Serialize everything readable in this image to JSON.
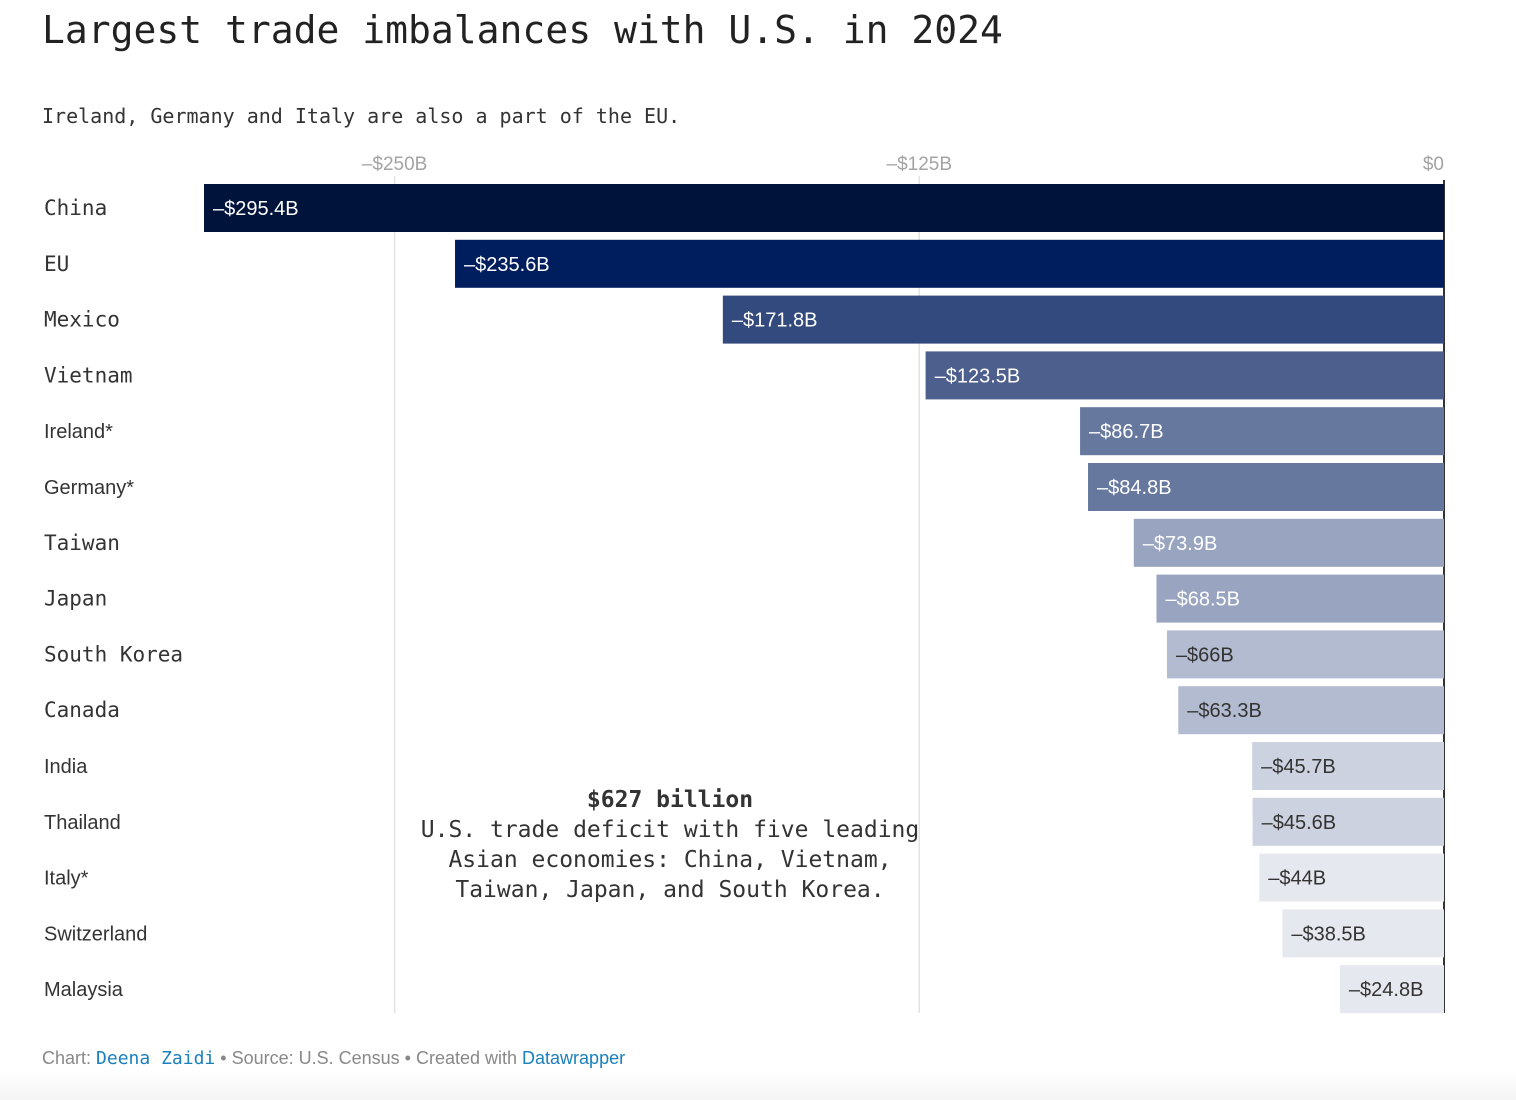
{
  "title": "Largest trade imbalances with U.S. in 2024",
  "subtitle": "Ireland, Germany and Italy are also a part of the EU.",
  "chart_data": {
    "type": "bar",
    "orientation": "horizontal",
    "categories": [
      "China",
      "EU",
      "Mexico",
      "Vietnam",
      "Ireland*",
      "Germany*",
      "Taiwan",
      "Japan",
      "South Korea",
      "Canada",
      "India",
      "Thailand",
      "Italy*",
      "Switzerland",
      "Malaysia"
    ],
    "values": [
      -295.4,
      -235.6,
      -171.8,
      -123.5,
      -86.7,
      -84.8,
      -73.9,
      -68.5,
      -66,
      -63.3,
      -45.7,
      -45.6,
      -44,
      -38.5,
      -24.8
    ],
    "value_labels": [
      "–$295.4B",
      "–$235.6B",
      "–$171.8B",
      "–$123.5B",
      "–$86.7B",
      "–$84.8B",
      "–$73.9B",
      "–$68.5B",
      "–$66B",
      "–$63.3B",
      "–$45.7B",
      "–$45.6B",
      "–$44B",
      "–$38.5B",
      "–$24.8B"
    ],
    "colors": [
      "#00133b",
      "#001e5e",
      "#334a7e",
      "#4d5f8c",
      "#66789e",
      "#66789e",
      "#99a5c0",
      "#99a5c0",
      "#b3bbd1",
      "#b3bbd1",
      "#ccd2e0",
      "#ccd2e0",
      "#e6e8f0",
      "#e6e8f0",
      "#e6e8f0"
    ],
    "label_colors": [
      "#ffffff",
      "#ffffff",
      "#ffffff",
      "#ffffff",
      "#ffffff",
      "#ffffff",
      "#ffffff",
      "#ffffff",
      "#333333",
      "#333333",
      "#333333",
      "#333333",
      "#333333",
      "#333333",
      "#333333"
    ],
    "monospace_categories": [
      "China",
      "EU",
      "Mexico",
      "Vietnam",
      "Taiwan",
      "Japan",
      "South Korea",
      "Canada"
    ],
    "x_ticks": [
      -250,
      -125,
      0
    ],
    "x_tick_labels": [
      "–$250B",
      "–$125B",
      "$0"
    ],
    "xlim": [
      -295.4,
      0
    ],
    "grid": true,
    "annotation": {
      "heading": "$627 billion",
      "lines": [
        "U.S. trade deficit with five leading",
        "Asian economies: China, Vietnam,",
        "Taiwan, Japan, and South Korea."
      ]
    }
  },
  "footer": {
    "chart_prefix": "Chart:",
    "author": "Deena Zaidi",
    "source": "• Source: U.S. Census • Created with",
    "tool": "Datawrapper"
  }
}
